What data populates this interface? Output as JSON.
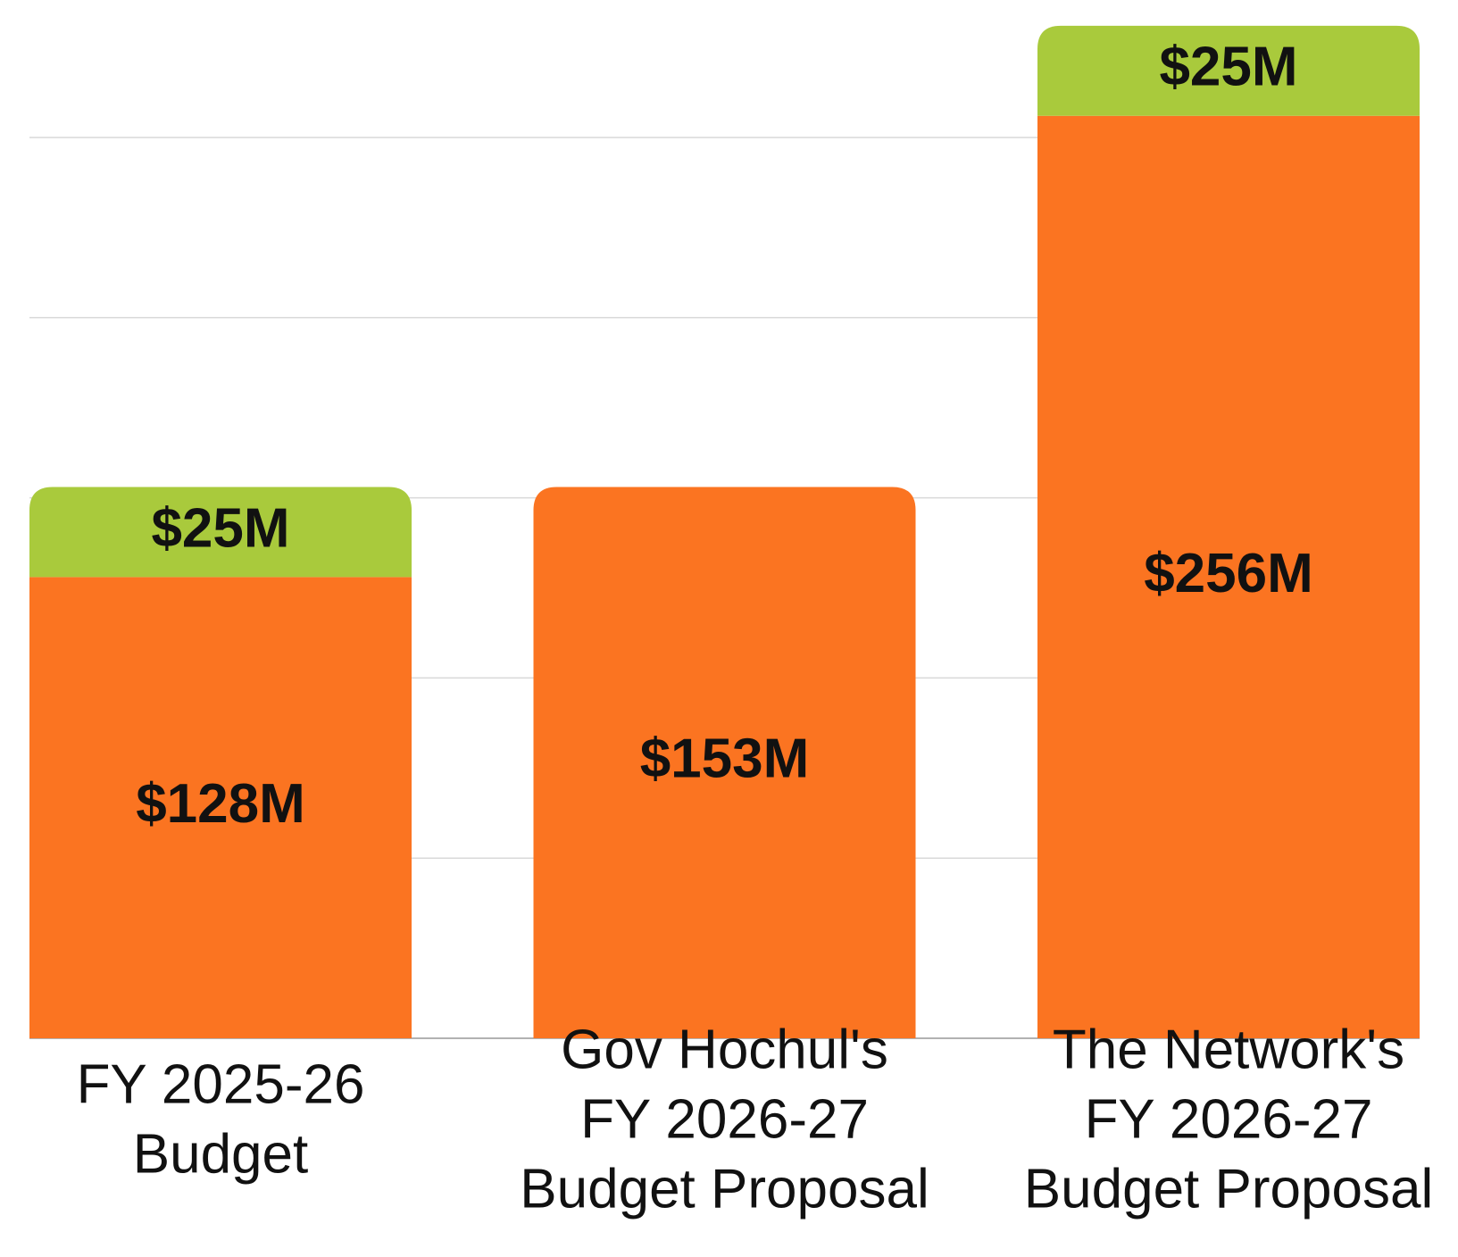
{
  "chart_data": {
    "type": "stacked_bar",
    "categories": [
      [
        "FY 2025-26",
        "Budget"
      ],
      [
        "Gov Hochul's",
        "FY 2026-27",
        "Budget Proposal"
      ],
      [
        "The Network's",
        "FY 2026-27",
        "Budget Proposal"
      ]
    ],
    "series": [
      {
        "color": "#fb7421",
        "values": [
          128,
          153,
          256
        ],
        "value_labels": [
          "$128M",
          "$153M",
          "$256M"
        ]
      },
      {
        "color": "#a9ca3c",
        "values": [
          25,
          null,
          25
        ],
        "value_labels": [
          "$25M",
          null,
          "$25M"
        ]
      }
    ],
    "ylim": [
      0,
      285
    ],
    "yticks": [
      0,
      50,
      100,
      150,
      200,
      250
    ],
    "grid": true
  }
}
